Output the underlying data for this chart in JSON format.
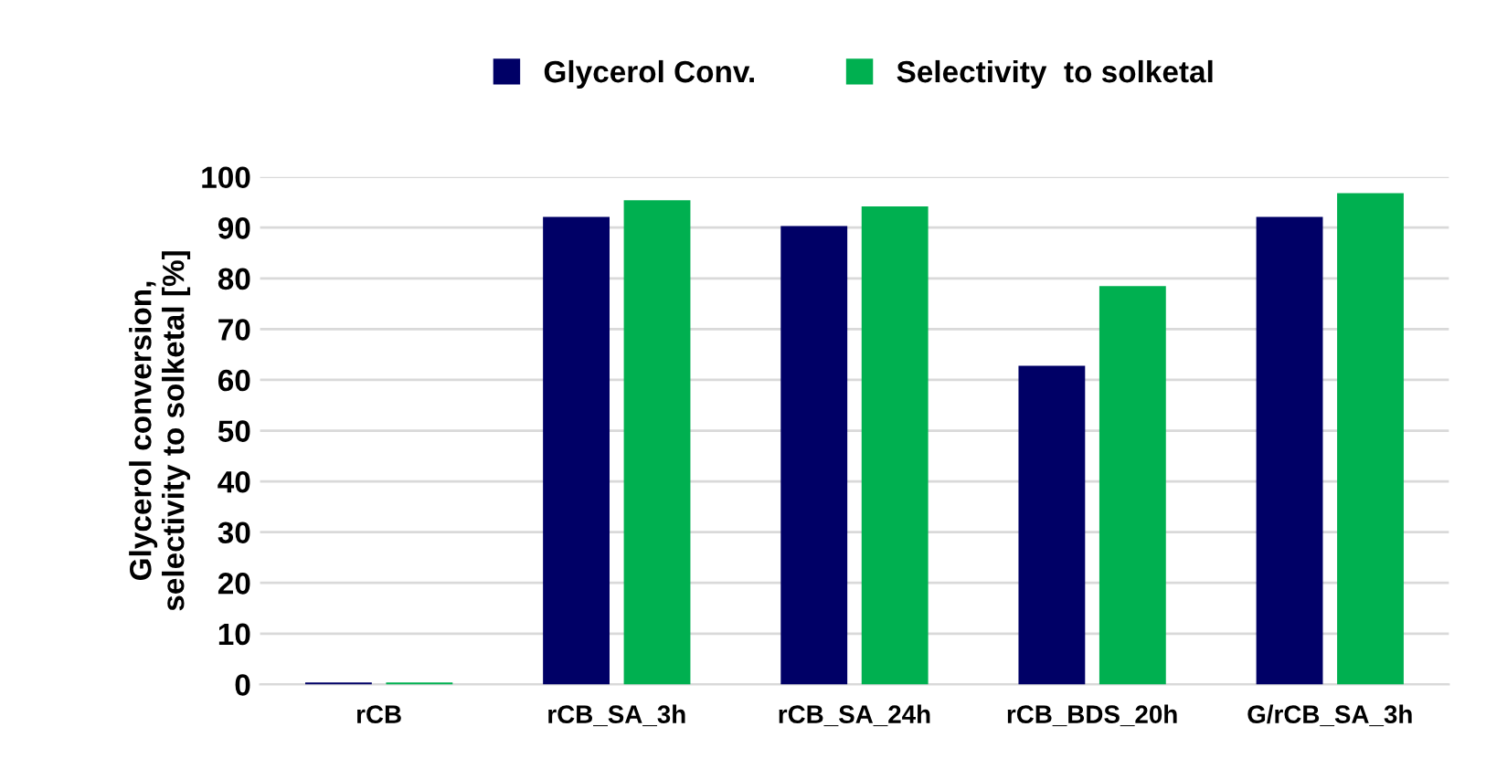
{
  "chart_data": {
    "type": "bar",
    "ylabel": "Glycerol conversion,\nselectivity to solketal [%]",
    "categories": [
      "rCB",
      "rCB_SA_3h",
      "rCB_SA_24h",
      "rCB_BDS_20h",
      "G/rCB_SA_3h"
    ],
    "series": [
      {
        "name": "Glycerol Conv.",
        "color": "#000066",
        "values": [
          0.4,
          92.1,
          90.3,
          62.8,
          92.1
        ]
      },
      {
        "name": "Selectivity  to solketal",
        "color": "#00b050",
        "values": [
          0.4,
          95.4,
          94.2,
          78.5,
          96.8
        ]
      }
    ],
    "ylim": [
      0,
      100
    ],
    "yticks": [
      0,
      10,
      20,
      30,
      40,
      50,
      60,
      70,
      80,
      90,
      100
    ],
    "grid": "y",
    "legend": "top"
  }
}
